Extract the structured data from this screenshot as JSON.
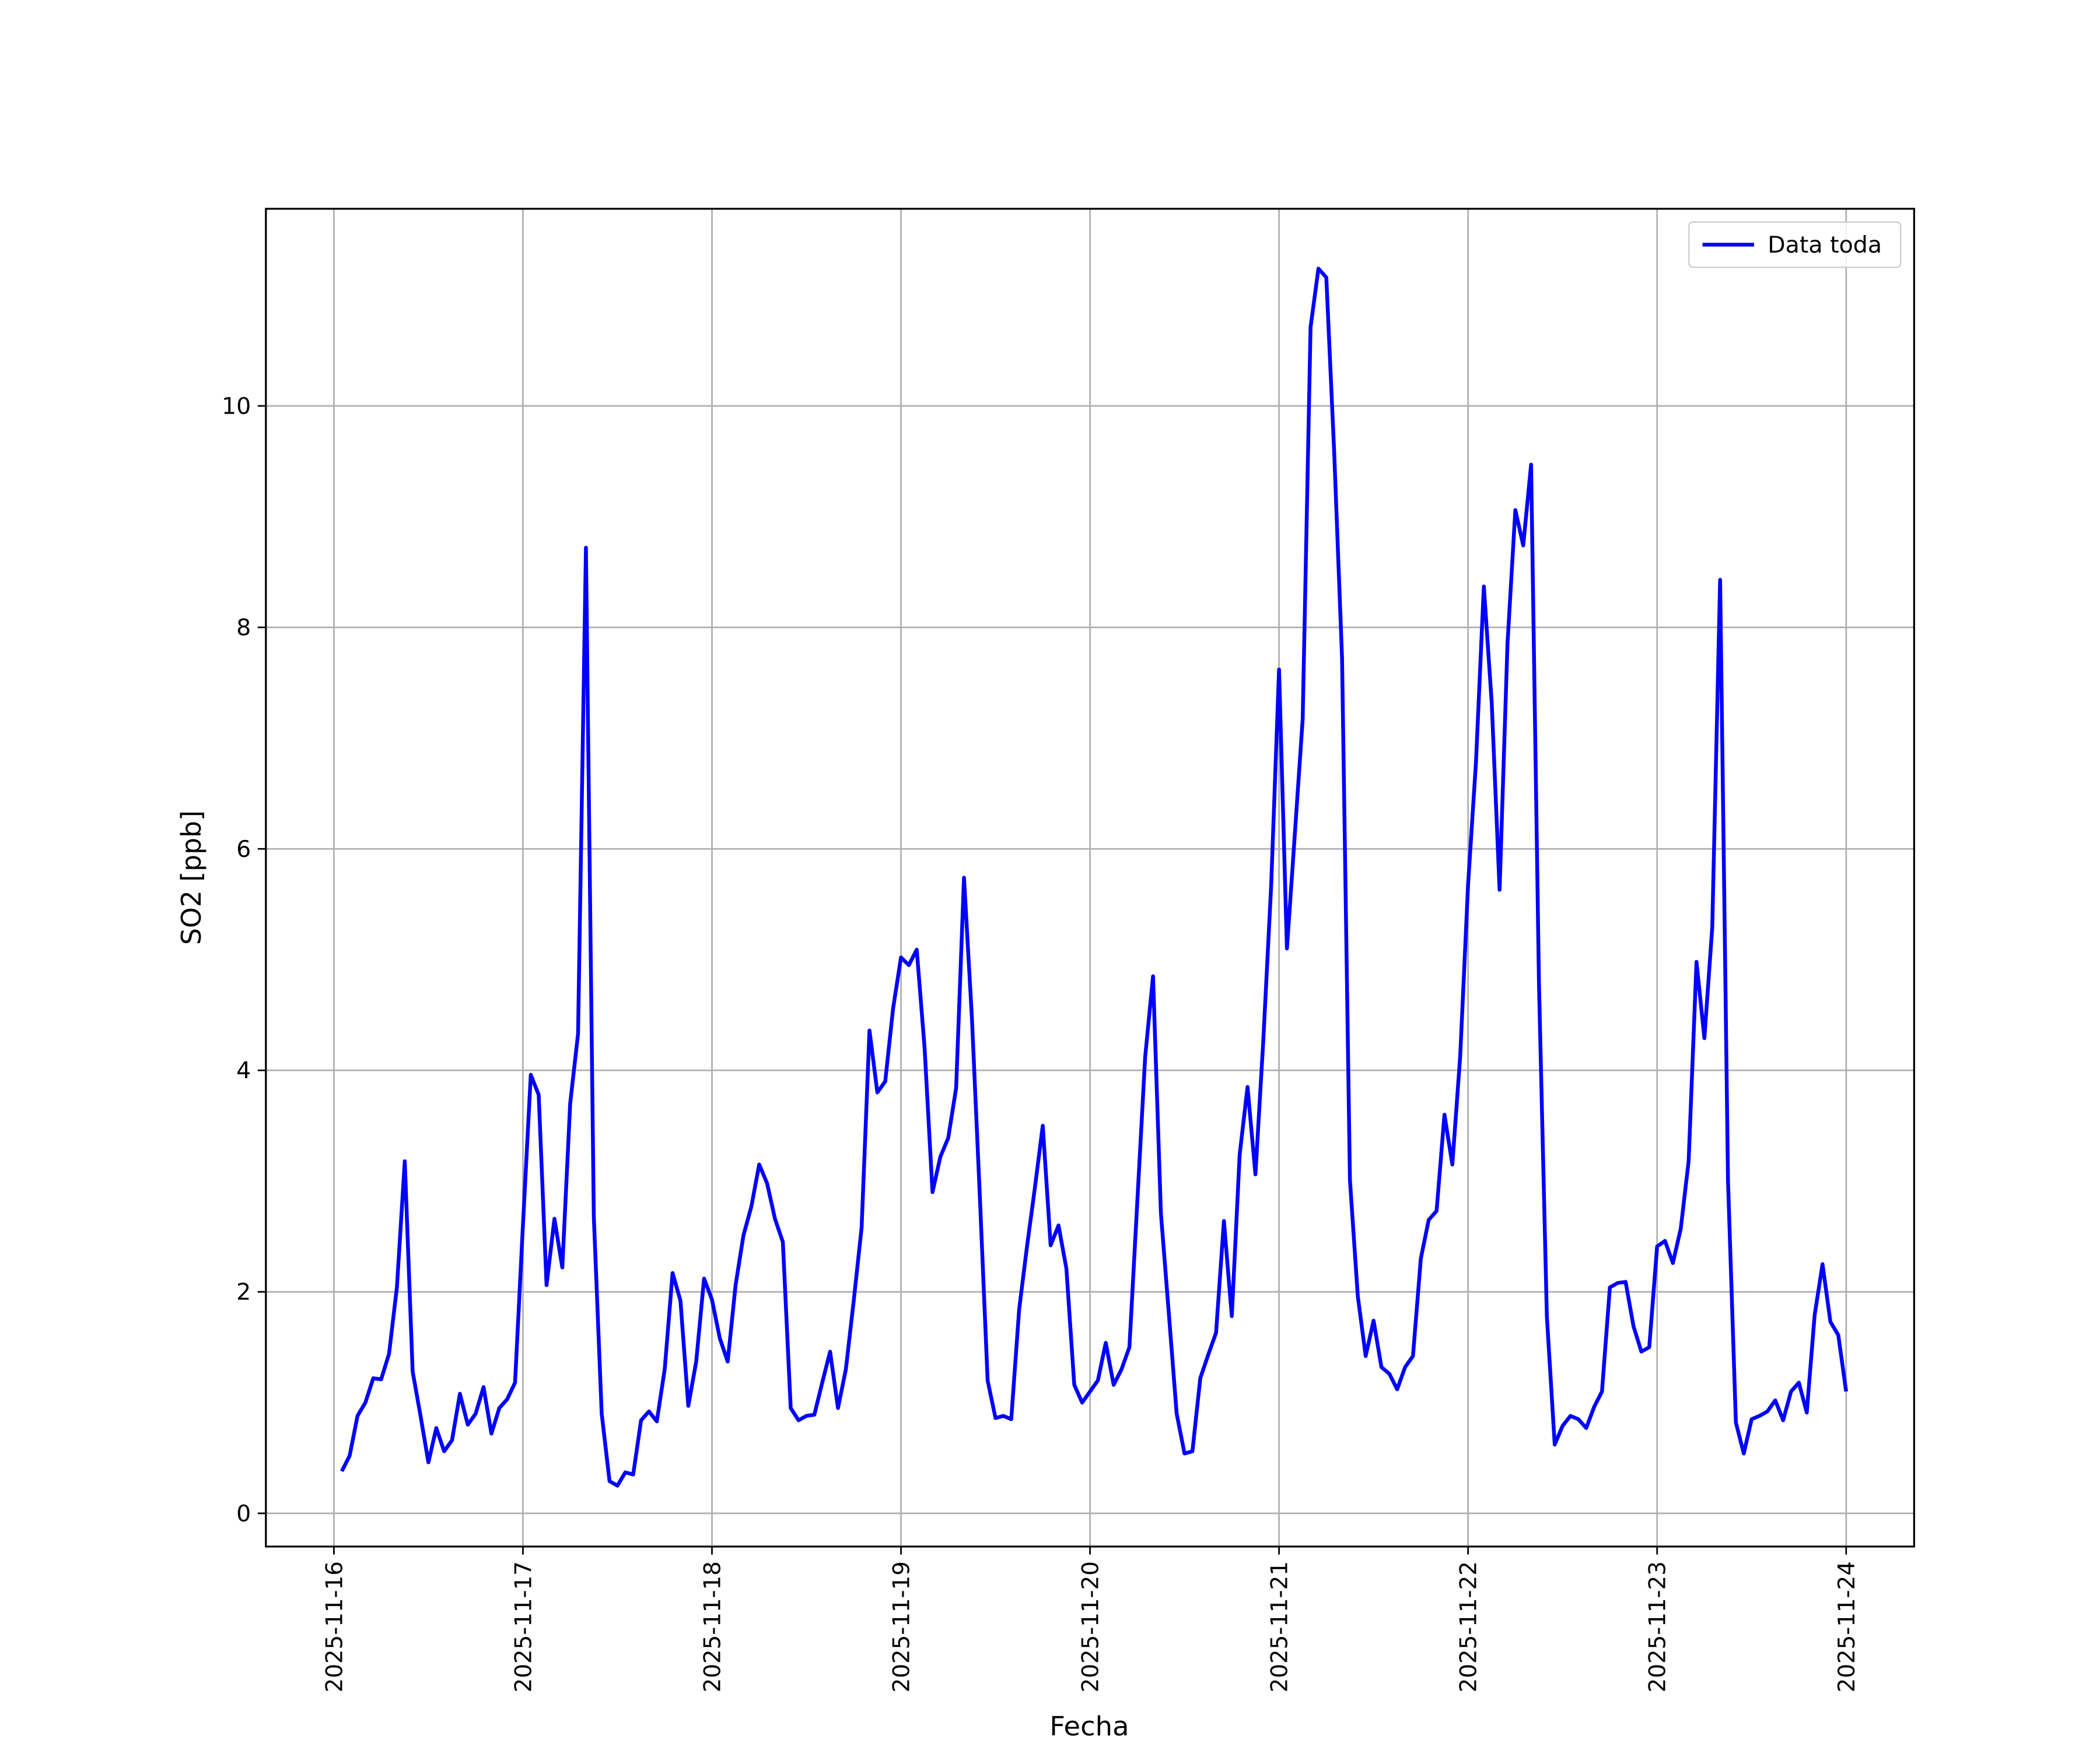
{
  "chart_data": {
    "type": "line",
    "xlabel": "Fecha",
    "ylabel": "SO2 [ppb]",
    "x": [
      "2025-11-16T01:00",
      "2025-11-16T02:00",
      "2025-11-16T03:00",
      "2025-11-16T04:00",
      "2025-11-16T05:00",
      "2025-11-16T06:00",
      "2025-11-16T07:00",
      "2025-11-16T08:00",
      "2025-11-16T09:00",
      "2025-11-16T10:00",
      "2025-11-16T11:00",
      "2025-11-16T12:00",
      "2025-11-16T13:00",
      "2025-11-16T14:00",
      "2025-11-16T15:00",
      "2025-11-16T16:00",
      "2025-11-16T17:00",
      "2025-11-16T18:00",
      "2025-11-16T19:00",
      "2025-11-16T20:00",
      "2025-11-16T21:00",
      "2025-11-16T22:00",
      "2025-11-16T23:00",
      "2025-11-17T00:00",
      "2025-11-17T01:00",
      "2025-11-17T02:00",
      "2025-11-17T03:00",
      "2025-11-17T04:00",
      "2025-11-17T05:00",
      "2025-11-17T06:00",
      "2025-11-17T07:00",
      "2025-11-17T08:00",
      "2025-11-17T09:00",
      "2025-11-17T10:00",
      "2025-11-17T11:00",
      "2025-11-17T12:00",
      "2025-11-17T13:00",
      "2025-11-17T14:00",
      "2025-11-17T15:00",
      "2025-11-17T16:00",
      "2025-11-17T17:00",
      "2025-11-17T18:00",
      "2025-11-17T19:00",
      "2025-11-17T20:00",
      "2025-11-17T21:00",
      "2025-11-17T22:00",
      "2025-11-17T23:00",
      "2025-11-18T00:00",
      "2025-11-18T01:00",
      "2025-11-18T02:00",
      "2025-11-18T03:00",
      "2025-11-18T04:00",
      "2025-11-18T05:00",
      "2025-11-18T06:00",
      "2025-11-18T07:00",
      "2025-11-18T08:00",
      "2025-11-18T09:00",
      "2025-11-18T10:00",
      "2025-11-18T11:00",
      "2025-11-18T12:00",
      "2025-11-18T13:00",
      "2025-11-18T14:00",
      "2025-11-18T15:00",
      "2025-11-18T16:00",
      "2025-11-18T17:00",
      "2025-11-18T18:00",
      "2025-11-18T19:00",
      "2025-11-18T20:00",
      "2025-11-18T21:00",
      "2025-11-18T22:00",
      "2025-11-18T23:00",
      "2025-11-19T00:00",
      "2025-11-19T01:00",
      "2025-11-19T02:00",
      "2025-11-19T03:00",
      "2025-11-19T04:00",
      "2025-11-19T05:00",
      "2025-11-19T06:00",
      "2025-11-19T07:00",
      "2025-11-19T08:00",
      "2025-11-19T09:00",
      "2025-11-19T10:00",
      "2025-11-19T11:00",
      "2025-11-19T12:00",
      "2025-11-19T13:00",
      "2025-11-19T14:00",
      "2025-11-19T15:00",
      "2025-11-19T16:00",
      "2025-11-19T17:00",
      "2025-11-19T18:00",
      "2025-11-19T19:00",
      "2025-11-19T20:00",
      "2025-11-19T21:00",
      "2025-11-19T22:00",
      "2025-11-19T23:00",
      "2025-11-20T00:00",
      "2025-11-20T01:00",
      "2025-11-20T02:00",
      "2025-11-20T03:00",
      "2025-11-20T04:00",
      "2025-11-20T05:00",
      "2025-11-20T06:00",
      "2025-11-20T07:00",
      "2025-11-20T08:00",
      "2025-11-20T09:00",
      "2025-11-20T10:00",
      "2025-11-20T11:00",
      "2025-11-20T12:00",
      "2025-11-20T13:00",
      "2025-11-20T14:00",
      "2025-11-20T15:00",
      "2025-11-20T16:00",
      "2025-11-20T17:00",
      "2025-11-20T18:00",
      "2025-11-20T19:00",
      "2025-11-20T20:00",
      "2025-11-20T21:00",
      "2025-11-20T22:00",
      "2025-11-20T23:00",
      "2025-11-21T00:00",
      "2025-11-21T01:00",
      "2025-11-21T02:00",
      "2025-11-21T03:00",
      "2025-11-21T04:00",
      "2025-11-21T05:00",
      "2025-11-21T06:00",
      "2025-11-21T07:00",
      "2025-11-21T08:00",
      "2025-11-21T09:00",
      "2025-11-21T10:00",
      "2025-11-21T11:00",
      "2025-11-21T12:00",
      "2025-11-21T13:00",
      "2025-11-21T14:00",
      "2025-11-21T15:00",
      "2025-11-21T16:00",
      "2025-11-21T17:00",
      "2025-11-21T18:00",
      "2025-11-21T19:00",
      "2025-11-21T20:00",
      "2025-11-21T21:00",
      "2025-11-21T22:00",
      "2025-11-21T23:00",
      "2025-11-22T00:00",
      "2025-11-22T01:00",
      "2025-11-22T02:00",
      "2025-11-22T03:00",
      "2025-11-22T04:00",
      "2025-11-22T05:00",
      "2025-11-22T06:00",
      "2025-11-22T07:00",
      "2025-11-22T08:00",
      "2025-11-22T09:00",
      "2025-11-22T10:00",
      "2025-11-22T11:00",
      "2025-11-22T12:00",
      "2025-11-22T13:00",
      "2025-11-22T14:00",
      "2025-11-22T15:00",
      "2025-11-22T16:00",
      "2025-11-22T17:00",
      "2025-11-22T18:00",
      "2025-11-22T19:00",
      "2025-11-22T20:00",
      "2025-11-22T21:00",
      "2025-11-22T22:00",
      "2025-11-22T23:00",
      "2025-11-23T00:00",
      "2025-11-23T01:00",
      "2025-11-23T02:00",
      "2025-11-23T03:00",
      "2025-11-23T04:00",
      "2025-11-23T05:00",
      "2025-11-23T06:00",
      "2025-11-23T07:00",
      "2025-11-23T08:00",
      "2025-11-23T09:00",
      "2025-11-23T10:00",
      "2025-11-23T11:00",
      "2025-11-23T12:00",
      "2025-11-23T13:00",
      "2025-11-23T14:00",
      "2025-11-23T15:00",
      "2025-11-23T16:00",
      "2025-11-23T17:00",
      "2025-11-23T18:00",
      "2025-11-23T19:00",
      "2025-11-23T20:00",
      "2025-11-23T21:00",
      "2025-11-23T22:00",
      "2025-11-23T23:00",
      "2025-11-24T00:00"
    ],
    "series": [
      {
        "name": "Data toda",
        "color": "#0000ff",
        "values": [
          0.38,
          0.52,
          0.88,
          1.0,
          1.22,
          1.21,
          1.44,
          2.04,
          3.18,
          1.28,
          0.88,
          0.46,
          0.77,
          0.56,
          0.66,
          1.08,
          0.8,
          0.9,
          1.14,
          0.72,
          0.95,
          1.03,
          1.18,
          2.6,
          3.96,
          3.78,
          2.06,
          2.66,
          2.22,
          3.7,
          4.33,
          8.72,
          2.68,
          0.9,
          0.29,
          0.25,
          0.37,
          0.35,
          0.84,
          0.92,
          0.83,
          1.3,
          2.17,
          1.92,
          0.97,
          1.37,
          2.12,
          1.93,
          1.58,
          1.37,
          2.06,
          2.51,
          2.77,
          3.15,
          2.98,
          2.66,
          2.45,
          0.95,
          0.84,
          0.88,
          0.89,
          1.18,
          1.46,
          0.95,
          1.3,
          1.92,
          2.58,
          4.36,
          3.8,
          3.9,
          4.56,
          5.02,
          4.95,
          5.09,
          4.2,
          2.9,
          3.22,
          3.39,
          3.84,
          5.74,
          4.48,
          2.88,
          1.2,
          0.86,
          0.88,
          0.85,
          1.84,
          2.41,
          2.94,
          3.5,
          2.42,
          2.6,
          2.21,
          1.16,
          1.0,
          1.1,
          1.2,
          1.54,
          1.16,
          1.3,
          1.5,
          2.81,
          4.12,
          4.85,
          2.71,
          1.81,
          0.9,
          0.54,
          0.56,
          1.22,
          1.43,
          1.63,
          2.64,
          1.78,
          3.24,
          3.85,
          3.06,
          4.27,
          5.67,
          7.62,
          5.1,
          6.13,
          7.17,
          10.71,
          11.24,
          11.16,
          9.58,
          7.72,
          3.01,
          1.96,
          1.42,
          1.74,
          1.32,
          1.26,
          1.12,
          1.32,
          1.42,
          2.3,
          2.65,
          2.73,
          3.6,
          3.15,
          4.13,
          5.68,
          6.78,
          8.37,
          7.32,
          5.63,
          7.85,
          9.06,
          8.74,
          9.47,
          4.78,
          1.78,
          0.62,
          0.79,
          0.88,
          0.85,
          0.77,
          0.96,
          1.1,
          2.04,
          2.08,
          2.09,
          1.69,
          1.46,
          1.5,
          2.41,
          2.46,
          2.26,
          2.57,
          3.18,
          4.98,
          4.29,
          5.29,
          8.43,
          3.0,
          0.82,
          0.54,
          0.85,
          0.88,
          0.92,
          1.02,
          0.84,
          1.1,
          1.18,
          0.91,
          1.79,
          2.25,
          1.73,
          1.61,
          1.1
        ]
      }
    ],
    "xlim": [
      "2025-11-15T15:22",
      "2025-11-24T08:38"
    ],
    "xticks": [
      "2025-11-16",
      "2025-11-17",
      "2025-11-18",
      "2025-11-19",
      "2025-11-20",
      "2025-11-21",
      "2025-11-22",
      "2025-11-23",
      "2025-11-24"
    ],
    "ylim": [
      -0.3,
      11.78
    ],
    "yticks": [
      0,
      2,
      4,
      6,
      8,
      10
    ],
    "grid": true,
    "legend": "upper right"
  }
}
